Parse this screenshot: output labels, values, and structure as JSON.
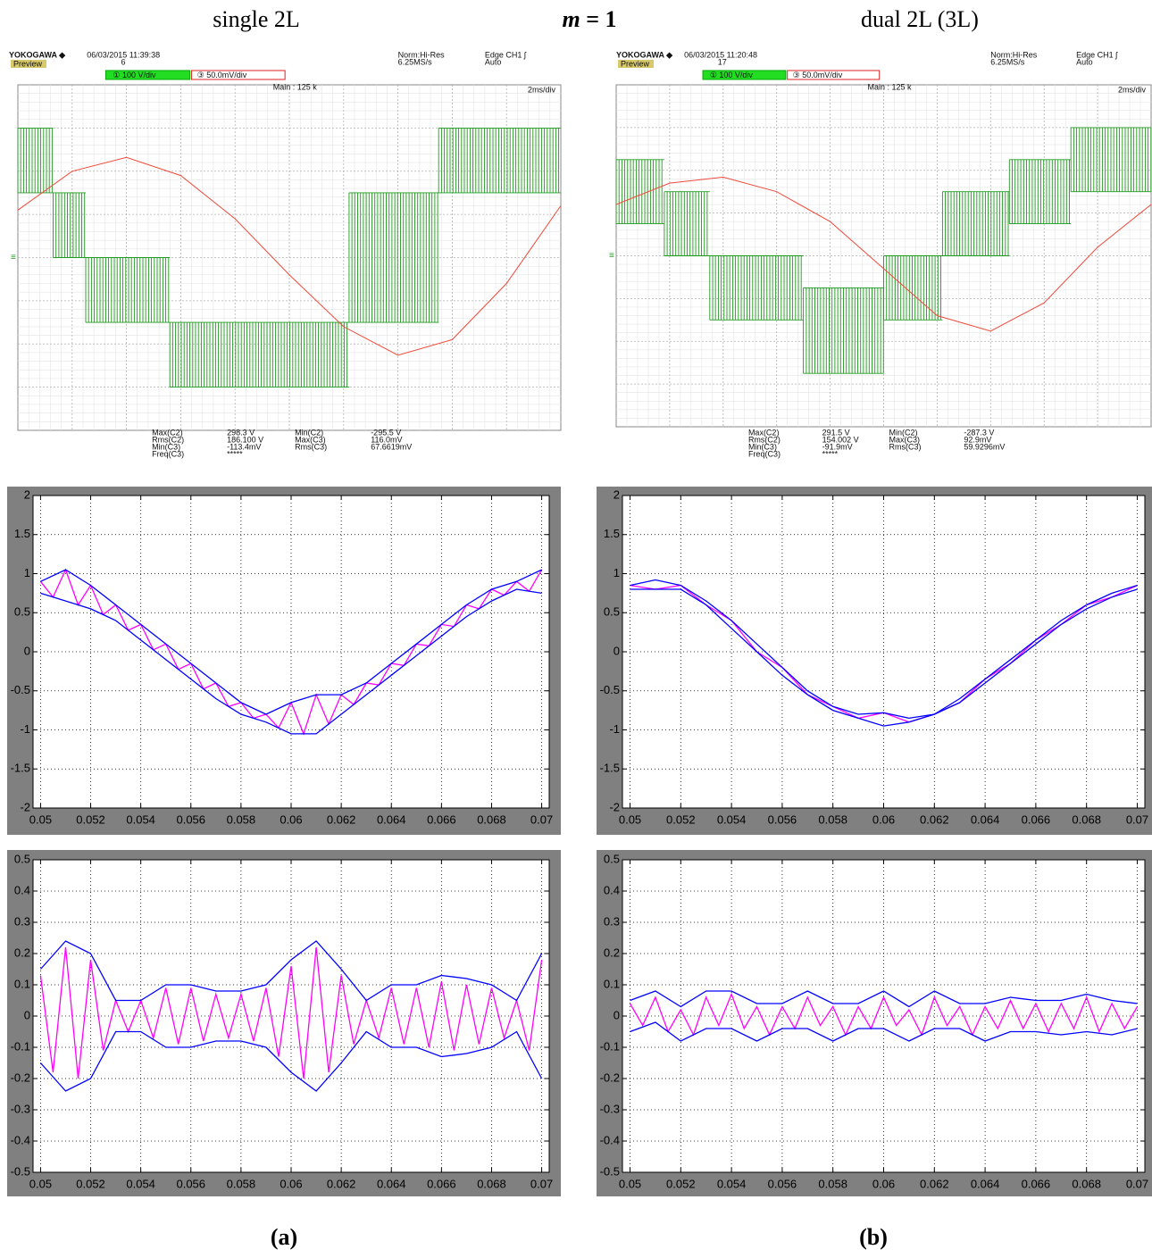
{
  "header": {
    "left": "single 2L",
    "center_var": "m",
    "center_rest": " = 1",
    "right": "dual 2L (3L)"
  },
  "scopes": [
    {
      "brand": "YOKOGAWA ◆",
      "datetime": "06/03/2015 11:39:38",
      "record": "6",
      "preview": "Preview",
      "mode": "Norm:Hi-Res",
      "rate": "6.25MS/s",
      "trigger": "Edge CH1 ʃ",
      "trigger_mode": "Auto",
      "ch1": "① 100 V/div",
      "ch2": "③ 50.0mV/div",
      "main": "Main : 125 k",
      "timediv": "2ms/div",
      "measurements": [
        [
          "Max(C2)",
          "298.3 V",
          "Min(C2)",
          "-295.5 V"
        ],
        [
          "Rms(C2)",
          "186.100 V",
          "Max(C3)",
          "116.0mV"
        ],
        [
          "Min(C3)",
          "-113.4mV",
          "Rms(C3)",
          "67.6619mV"
        ],
        [
          "Freq(C3)",
          "*****"
        ]
      ],
      "traces": {
        "green": {
          "color": "#1f9a1f",
          "xlim": [
            0,
            20
          ],
          "ylim": [
            -400,
            400
          ],
          "segments": [
            [
              0,
              1.3,
              150,
              300
            ],
            [
              1.3,
              2.5,
              0,
              150
            ],
            [
              2.5,
              5.6,
              -150,
              0
            ],
            [
              5.6,
              12.2,
              -300,
              -150
            ],
            [
              12.2,
              15.5,
              -150,
              150
            ],
            [
              15.5,
              20,
              150,
              300
            ]
          ]
        },
        "red": {
          "color": "#f04a3a",
          "xlim": [
            0,
            20
          ],
          "ylim": [
            -200,
            200
          ],
          "x": [
            0,
            2,
            4,
            6,
            8,
            10,
            12,
            14,
            16,
            18,
            20
          ],
          "values": [
            55,
            100,
            116,
            95,
            45,
            -20,
            -80,
            -113,
            -95,
            -30,
            60
          ]
        }
      }
    },
    {
      "brand": "YOKOGAWA ◆",
      "datetime": "06/03/2015 11:20:48",
      "record": "17",
      "preview": "Preview",
      "mode": "Norm:Hi-Res",
      "rate": "6.25MS/s",
      "trigger": "Edge CH1 ʃ",
      "trigger_mode": "Auto",
      "ch1": "① 100 V/div",
      "ch2": "③ 50.0mV/div",
      "main": "Main : 125 k",
      "timediv": "2ms/div",
      "measurements": [
        [
          "Max(C2)",
          "291.5 V",
          "Min(C2)",
          "-287.3 V"
        ],
        [
          "Rms(C2)",
          "154.002 V",
          "Max(C3)",
          "92.9mV"
        ],
        [
          "Min(C3)",
          "-91.9mV",
          "Rms(C3)",
          "59.9296mV"
        ],
        [
          "Freq(C3)",
          "*****"
        ]
      ],
      "traces": {
        "green": {
          "color": "#1f9a1f",
          "xlim": [
            0,
            20
          ],
          "ylim": [
            -400,
            400
          ],
          "segments": [
            [
              0,
              1.8,
              75,
              225
            ],
            [
              1.8,
              3.5,
              0,
              150
            ],
            [
              3.5,
              7,
              -150,
              0
            ],
            [
              7,
              10,
              -275,
              -75
            ],
            [
              10,
              12.2,
              -150,
              0
            ],
            [
              12.2,
              14.7,
              0,
              150
            ],
            [
              14.7,
              17,
              75,
              225
            ],
            [
              17,
              20,
              150,
              300
            ]
          ]
        },
        "red": {
          "color": "#f04a3a",
          "xlim": [
            0,
            20
          ],
          "ylim": [
            -200,
            200
          ],
          "x": [
            0,
            2,
            4,
            6,
            8,
            10,
            12,
            14,
            16,
            18,
            20
          ],
          "values": [
            60,
            85,
            92,
            75,
            40,
            -15,
            -70,
            -88,
            -55,
            10,
            60
          ]
        }
      }
    }
  ],
  "chart_data": [
    {
      "type": "line",
      "xlim": [
        0.0497,
        0.0703
      ],
      "ylim": [
        -2,
        2
      ],
      "xticks": [
        0.05,
        0.052,
        0.054,
        0.056,
        0.058,
        0.06,
        0.062,
        0.064,
        0.066,
        0.068,
        0.07
      ],
      "yticks": [
        -2,
        -1.5,
        -1,
        -0.5,
        0,
        0.5,
        1,
        1.5,
        2
      ],
      "grid": true,
      "x": [
        0.05,
        0.051,
        0.052,
        0.053,
        0.054,
        0.055,
        0.056,
        0.057,
        0.058,
        0.059,
        0.06,
        0.061,
        0.062,
        0.063,
        0.064,
        0.065,
        0.066,
        0.067,
        0.068,
        0.069,
        0.07
      ],
      "series": [
        {
          "color": "#ff00ff",
          "x": [
            0.05,
            0.0505,
            0.051,
            0.0515,
            0.052,
            0.0525,
            0.053,
            0.0535,
            0.054,
            0.0545,
            0.055,
            0.0555,
            0.056,
            0.0565,
            0.057,
            0.0575,
            0.058,
            0.0585,
            0.059,
            0.0595,
            0.06,
            0.0605,
            0.061,
            0.0615,
            0.062,
            0.0625,
            0.063,
            0.0635,
            0.064,
            0.0645,
            0.065,
            0.0655,
            0.066,
            0.0665,
            0.067,
            0.0675,
            0.068,
            0.0685,
            0.069,
            0.0695,
            0.07
          ],
          "values": [
            0.9,
            0.7,
            1.05,
            0.6,
            0.85,
            0.475,
            0.6,
            0.275,
            0.35,
            0.025,
            0.1,
            -0.225,
            -0.15,
            -0.475,
            -0.4,
            -0.7,
            -0.65,
            -0.85,
            -0.8,
            -0.975,
            -0.65,
            -1.05,
            -0.55,
            -0.925,
            -0.55,
            -0.675,
            -0.4,
            -0.425,
            -0.15,
            -0.175,
            0.1,
            0.075,
            0.35,
            0.325,
            0.6,
            0.55,
            0.8,
            0.725,
            0.9,
            0.775,
            1.05
          ]
        },
        {
          "color": "#0000ff",
          "values": [
            0.9,
            1.05,
            0.85,
            0.6,
            0.35,
            0.1,
            -0.15,
            -0.4,
            -0.65,
            -0.8,
            -0.65,
            -0.55,
            -0.55,
            -0.4,
            -0.15,
            0.1,
            0.35,
            0.6,
            0.8,
            0.9,
            1.05
          ]
        },
        {
          "color": "#0000ff",
          "values": [
            0.75,
            0.65,
            0.55,
            0.4,
            0.15,
            -0.1,
            -0.35,
            -0.6,
            -0.8,
            -0.9,
            -1.05,
            -1.05,
            -0.8,
            -0.55,
            -0.3,
            -0.05,
            0.2,
            0.45,
            0.65,
            0.8,
            0.75
          ]
        }
      ]
    },
    {
      "type": "line",
      "xlim": [
        0.0497,
        0.0703
      ],
      "ylim": [
        -2,
        2
      ],
      "xticks": [
        0.05,
        0.052,
        0.054,
        0.056,
        0.058,
        0.06,
        0.062,
        0.064,
        0.066,
        0.068,
        0.07
      ],
      "yticks": [
        -2,
        -1.5,
        -1,
        -0.5,
        0,
        0.5,
        1,
        1.5,
        2
      ],
      "grid": true,
      "x": [
        0.05,
        0.051,
        0.052,
        0.053,
        0.054,
        0.055,
        0.056,
        0.057,
        0.058,
        0.059,
        0.06,
        0.061,
        0.062,
        0.063,
        0.064,
        0.065,
        0.066,
        0.067,
        0.068,
        0.069,
        0.07
      ],
      "series": [
        {
          "color": "#ff00ff",
          "values": [
            0.85,
            0.8,
            0.85,
            0.6,
            0.4,
            0,
            -0.2,
            -0.55,
            -0.7,
            -0.85,
            -0.78,
            -0.9,
            -0.8,
            -0.65,
            -0.35,
            -0.15,
            0.15,
            0.35,
            0.6,
            0.7,
            0.85
          ]
        },
        {
          "color": "#0000ff",
          "values": [
            0.85,
            0.92,
            0.85,
            0.65,
            0.4,
            0.1,
            -0.2,
            -0.5,
            -0.7,
            -0.8,
            -0.78,
            -0.85,
            -0.8,
            -0.6,
            -0.35,
            -0.1,
            0.15,
            0.4,
            0.6,
            0.75,
            0.85
          ]
        },
        {
          "color": "#0000ff",
          "values": [
            0.8,
            0.8,
            0.8,
            0.6,
            0.3,
            0,
            -0.3,
            -0.55,
            -0.75,
            -0.85,
            -0.95,
            -0.9,
            -0.8,
            -0.65,
            -0.4,
            -0.15,
            0.1,
            0.35,
            0.55,
            0.7,
            0.8
          ]
        }
      ]
    },
    {
      "type": "line",
      "xlim": [
        0.0497,
        0.0703
      ],
      "ylim": [
        -0.5,
        0.5
      ],
      "xticks": [
        0.05,
        0.052,
        0.054,
        0.056,
        0.058,
        0.06,
        0.062,
        0.064,
        0.066,
        0.068,
        0.07
      ],
      "yticks": [
        -0.5,
        -0.4,
        -0.3,
        -0.2,
        -0.1,
        0,
        0.1,
        0.2,
        0.3,
        0.4,
        0.5
      ],
      "grid": true,
      "x": [
        0.05,
        0.051,
        0.052,
        0.053,
        0.054,
        0.055,
        0.056,
        0.057,
        0.058,
        0.059,
        0.06,
        0.061,
        0.062,
        0.063,
        0.064,
        0.065,
        0.066,
        0.067,
        0.068,
        0.069,
        0.07
      ],
      "series": [
        {
          "color": "#ff00ff",
          "x": [
            0.05,
            0.0505,
            0.051,
            0.0515,
            0.052,
            0.0525,
            0.053,
            0.0535,
            0.054,
            0.0545,
            0.055,
            0.0555,
            0.056,
            0.0565,
            0.057,
            0.0575,
            0.058,
            0.0585,
            0.059,
            0.0595,
            0.06,
            0.0605,
            0.061,
            0.0615,
            0.062,
            0.0625,
            0.063,
            0.0635,
            0.064,
            0.0645,
            0.065,
            0.0655,
            0.066,
            0.0665,
            0.067,
            0.0675,
            0.068,
            0.0685,
            0.069,
            0.0695,
            0.07
          ],
          "values": [
            0.13,
            -0.18,
            0.22,
            -0.2,
            0.18,
            -0.11,
            0.05,
            -0.05,
            0.05,
            -0.07,
            0.09,
            -0.09,
            0.09,
            -0.08,
            0.07,
            -0.07,
            0.07,
            -0.08,
            0.09,
            -0.13,
            0.16,
            -0.2,
            0.22,
            -0.18,
            0.13,
            -0.09,
            0.05,
            -0.07,
            0.09,
            -0.09,
            0.09,
            -0.1,
            0.11,
            -0.11,
            0.1,
            -0.09,
            0.09,
            -0.07,
            0.05,
            -0.11,
            0.18
          ]
        },
        {
          "color": "#0000ff",
          "values": [
            0.15,
            0.24,
            0.2,
            0.05,
            0.05,
            0.1,
            0.1,
            0.08,
            0.08,
            0.1,
            0.18,
            0.24,
            0.15,
            0.05,
            0.1,
            0.1,
            0.13,
            0.12,
            0.1,
            0.05,
            0.2
          ]
        },
        {
          "color": "#0000ff",
          "values": [
            -0.15,
            -0.24,
            -0.2,
            -0.05,
            -0.05,
            -0.1,
            -0.1,
            -0.08,
            -0.08,
            -0.1,
            -0.18,
            -0.24,
            -0.15,
            -0.05,
            -0.1,
            -0.1,
            -0.13,
            -0.12,
            -0.1,
            -0.05,
            -0.2
          ]
        }
      ]
    },
    {
      "type": "line",
      "xlim": [
        0.0497,
        0.0703
      ],
      "ylim": [
        -0.5,
        0.5
      ],
      "xticks": [
        0.05,
        0.052,
        0.054,
        0.056,
        0.058,
        0.06,
        0.062,
        0.064,
        0.066,
        0.068,
        0.07
      ],
      "yticks": [
        -0.5,
        -0.4,
        -0.3,
        -0.2,
        -0.1,
        0,
        0.1,
        0.2,
        0.3,
        0.4,
        0.5
      ],
      "grid": true,
      "x": [
        0.05,
        0.051,
        0.052,
        0.053,
        0.054,
        0.055,
        0.056,
        0.057,
        0.058,
        0.059,
        0.06,
        0.061,
        0.062,
        0.063,
        0.064,
        0.065,
        0.066,
        0.067,
        0.068,
        0.069,
        0.07
      ],
      "series": [
        {
          "color": "#ff00ff",
          "x": [
            0.05,
            0.0505,
            0.051,
            0.0515,
            0.052,
            0.0525,
            0.053,
            0.0535,
            0.054,
            0.0545,
            0.055,
            0.0555,
            0.056,
            0.0565,
            0.057,
            0.0575,
            0.058,
            0.0585,
            0.059,
            0.0595,
            0.06,
            0.0605,
            0.061,
            0.0615,
            0.062,
            0.0625,
            0.063,
            0.0635,
            0.064,
            0.0645,
            0.065,
            0.0655,
            0.066,
            0.0665,
            0.067,
            0.0675,
            0.068,
            0.0685,
            0.069,
            0.0695,
            0.07
          ],
          "values": [
            0.04,
            -0.03,
            0.06,
            -0.05,
            0.02,
            -0.06,
            0.06,
            -0.03,
            0.07,
            -0.04,
            0.03,
            -0.06,
            0.03,
            -0.04,
            0.06,
            -0.03,
            0.03,
            -0.06,
            0.03,
            -0.04,
            0.06,
            -0.03,
            0.02,
            -0.06,
            0.06,
            -0.03,
            0.03,
            -0.06,
            0.03,
            -0.04,
            0.05,
            -0.04,
            0.04,
            -0.05,
            0.04,
            -0.04,
            0.06,
            -0.05,
            0.04,
            -0.04,
            0.03
          ]
        },
        {
          "color": "#0000ff",
          "values": [
            0.05,
            0.08,
            0.03,
            0.08,
            0.08,
            0.04,
            0.04,
            0.08,
            0.04,
            0.04,
            0.08,
            0.03,
            0.08,
            0.04,
            0.04,
            0.06,
            0.05,
            0.05,
            0.07,
            0.05,
            0.04
          ]
        },
        {
          "color": "#0000ff",
          "values": [
            -0.05,
            -0.02,
            -0.08,
            -0.04,
            -0.04,
            -0.08,
            -0.04,
            -0.04,
            -0.08,
            -0.04,
            -0.04,
            -0.08,
            -0.04,
            -0.04,
            -0.08,
            -0.05,
            -0.05,
            -0.06,
            -0.05,
            -0.06,
            -0.04
          ]
        }
      ]
    }
  ],
  "panel_labels": [
    "(a)",
    "(b)"
  ]
}
